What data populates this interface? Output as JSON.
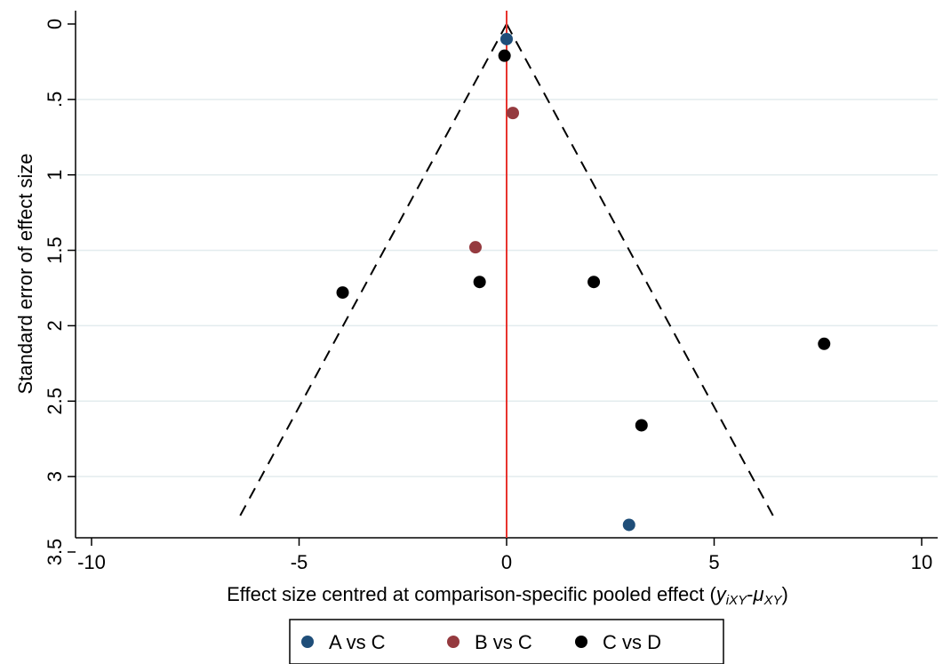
{
  "chart_data": {
    "type": "scatter",
    "xlabel": {
      "main": "Effect size centred at comparison-specific pooled effect (",
      "y": "y",
      "y_sub": "iXY",
      "dash": "-",
      "mu": "μ",
      "mu_sub": "XY",
      "close": ")"
    },
    "ylabel": "Standard error of effect size",
    "xlim": [
      -10,
      10
    ],
    "ylim": [
      0,
      3.5
    ],
    "y_reversed": true,
    "x_ticks": [
      -10,
      -5,
      0,
      5,
      10
    ],
    "x_tick_labels": [
      "-10",
      "-5",
      "0",
      "5",
      "10"
    ],
    "y_ticks": [
      0,
      0.5,
      1,
      1.5,
      2,
      2.5,
      3,
      3.5
    ],
    "y_tick_labels": [
      "0",
      ".5",
      "1",
      "1.5",
      "2",
      "2.5",
      "3",
      "3.5"
    ],
    "grid": "horizontal",
    "reference_line": {
      "x": 0,
      "color": "#e8342e"
    },
    "funnel": {
      "apex": [
        0,
        0
      ],
      "left_end": [
        -6.5,
        3.3
      ],
      "right_end": [
        6.5,
        3.3
      ],
      "style": "dashed"
    },
    "series": [
      {
        "name": "A vs C",
        "color": "#1f4e79",
        "points": [
          {
            "x": 0.0,
            "y": 0.1
          },
          {
            "x": 2.95,
            "y": 3.32
          }
        ]
      },
      {
        "name": "B vs C",
        "color": "#953a3f",
        "points": [
          {
            "x": 0.15,
            "y": 0.59
          },
          {
            "x": -0.75,
            "y": 1.48
          }
        ]
      },
      {
        "name": "C vs D",
        "color": "#000000",
        "points": [
          {
            "x": -0.05,
            "y": 0.21
          },
          {
            "x": -0.65,
            "y": 1.71
          },
          {
            "x": 2.1,
            "y": 1.71
          },
          {
            "x": -3.95,
            "y": 1.78
          },
          {
            "x": 7.65,
            "y": 2.12
          },
          {
            "x": 3.25,
            "y": 2.66
          }
        ]
      }
    ],
    "legend": "bottom"
  }
}
